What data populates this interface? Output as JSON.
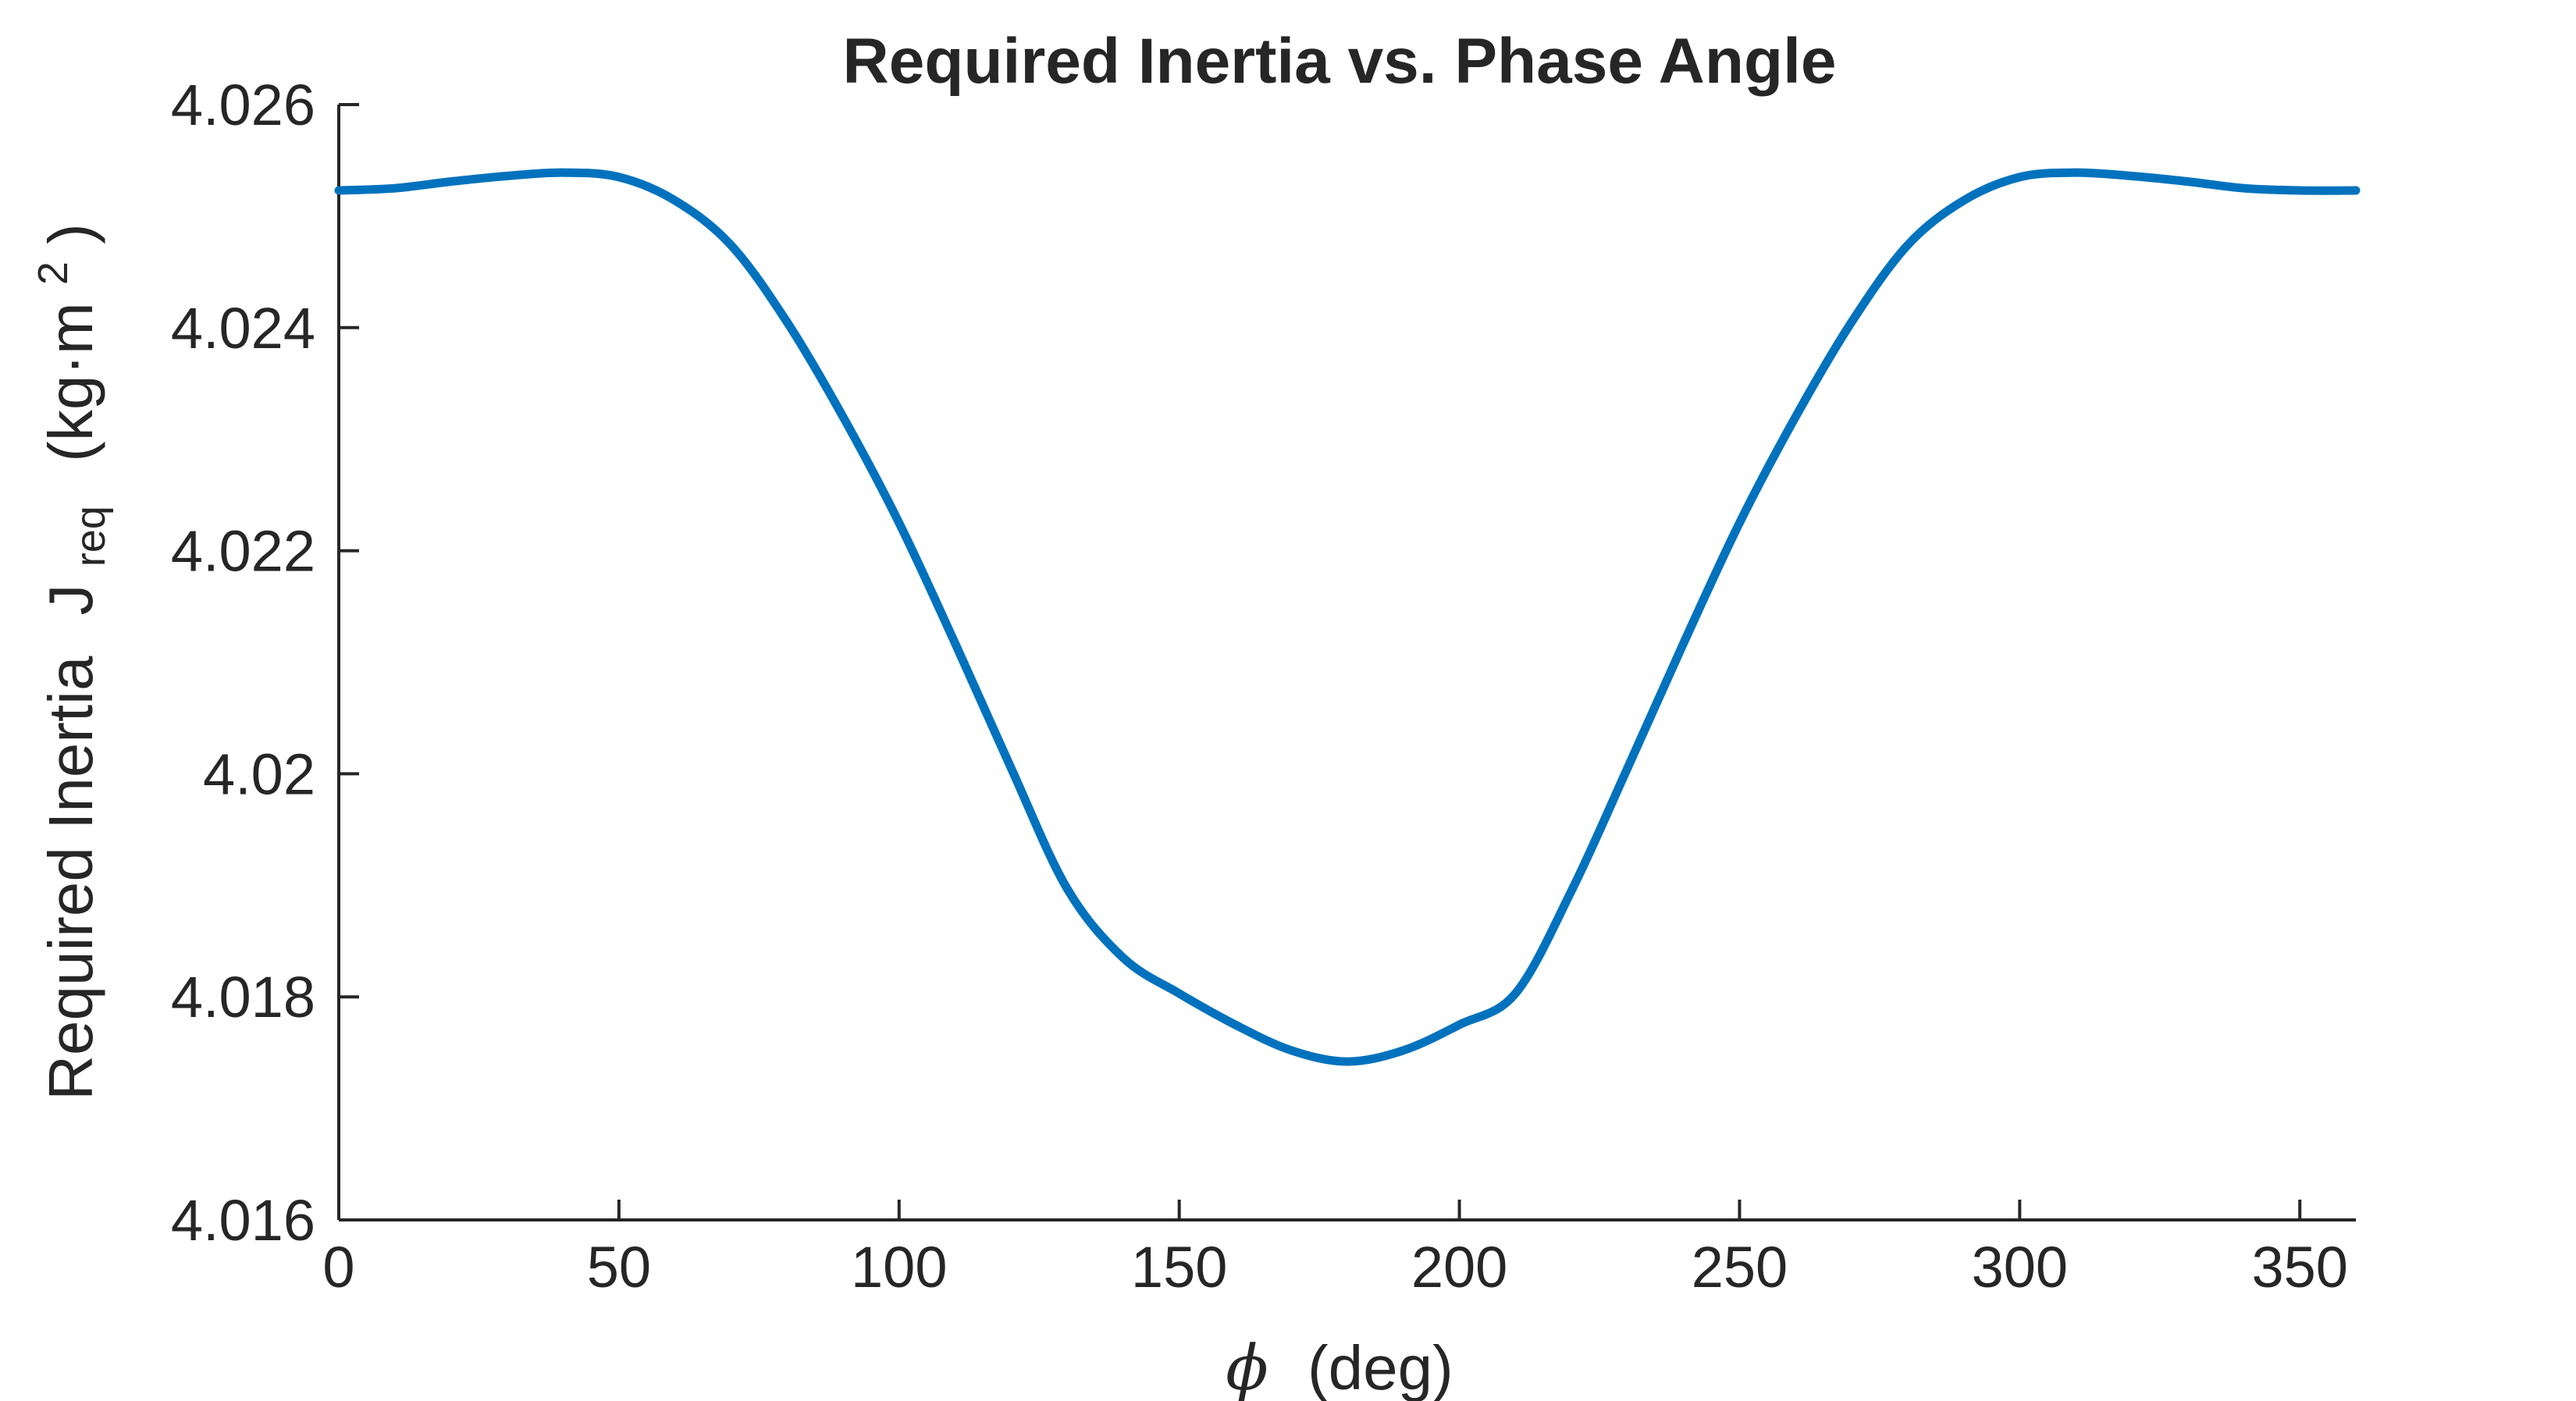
{
  "chart_data": {
    "type": "line",
    "title": "Required Inertia vs. Phase Angle",
    "xlabel": {
      "symbol": "ϕ",
      "unit": "(deg)"
    },
    "ylabel": {
      "text": "Required Inertia",
      "symbol": "J",
      "subscript": "req",
      "unit_prefix": "(kg·m",
      "unit_superscript": "2",
      "unit_suffix": ")"
    },
    "xlim": [
      0,
      360
    ],
    "ylim": [
      4.016,
      4.026
    ],
    "xticks": [
      0,
      50,
      100,
      150,
      200,
      250,
      300,
      350
    ],
    "xtick_labels": [
      "0",
      "50",
      "100",
      "150",
      "200",
      "250",
      "300",
      "350"
    ],
    "yticks": [
      4.016,
      4.018,
      4.02,
      4.022,
      4.024,
      4.026
    ],
    "ytick_labels": [
      "4.016",
      "4.018",
      "4.02",
      "4.022",
      "4.024",
      "4.026"
    ],
    "grid": false,
    "series": [
      {
        "color": "#0072BD",
        "x": [
          0,
          10,
          20,
          30,
          40,
          50,
          60,
          70,
          80,
          90,
          100,
          110,
          120,
          130,
          140,
          150,
          160,
          170,
          180,
          190,
          200,
          210,
          220,
          230,
          240,
          250,
          260,
          270,
          280,
          290,
          300,
          310,
          320,
          330,
          340,
          350,
          360
        ],
        "y": [
          4.02523,
          4.02525,
          4.02531,
          4.02536,
          4.02539,
          4.02535,
          4.02514,
          4.02474,
          4.02405,
          4.0232,
          4.02225,
          4.02117,
          4.02005,
          4.01897,
          4.01835,
          4.01803,
          4.01775,
          4.01752,
          4.01742,
          4.01752,
          4.01775,
          4.01803,
          4.01895,
          4.02005,
          4.02117,
          4.02225,
          4.0232,
          4.02405,
          4.02474,
          4.02514,
          4.02535,
          4.02539,
          4.02536,
          4.02531,
          4.02525,
          4.02523,
          4.02523
        ]
      }
    ]
  }
}
